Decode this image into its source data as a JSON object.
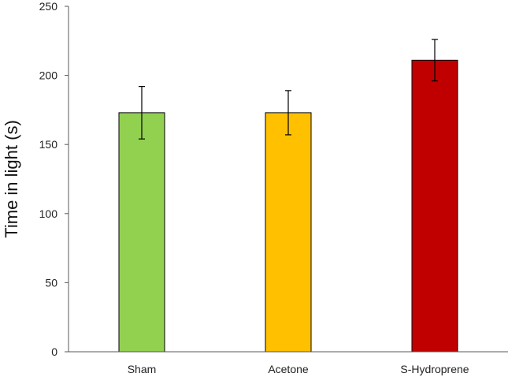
{
  "chart_data": {
    "type": "bar",
    "title": "",
    "xlabel": "",
    "ylabel": "Time in light (s)",
    "ylim": [
      0,
      250
    ],
    "yticks": [
      0,
      50,
      100,
      150,
      200,
      250
    ],
    "grid": false,
    "legend": "none",
    "categories": [
      "Sham",
      "Acetone",
      "S-Hydroprene"
    ],
    "values": [
      173,
      173,
      211
    ],
    "errors_low": [
      154,
      157,
      196
    ],
    "errors_high": [
      192,
      189,
      226
    ],
    "colors": [
      "#92d050",
      "#ffc000",
      "#c00000"
    ]
  }
}
